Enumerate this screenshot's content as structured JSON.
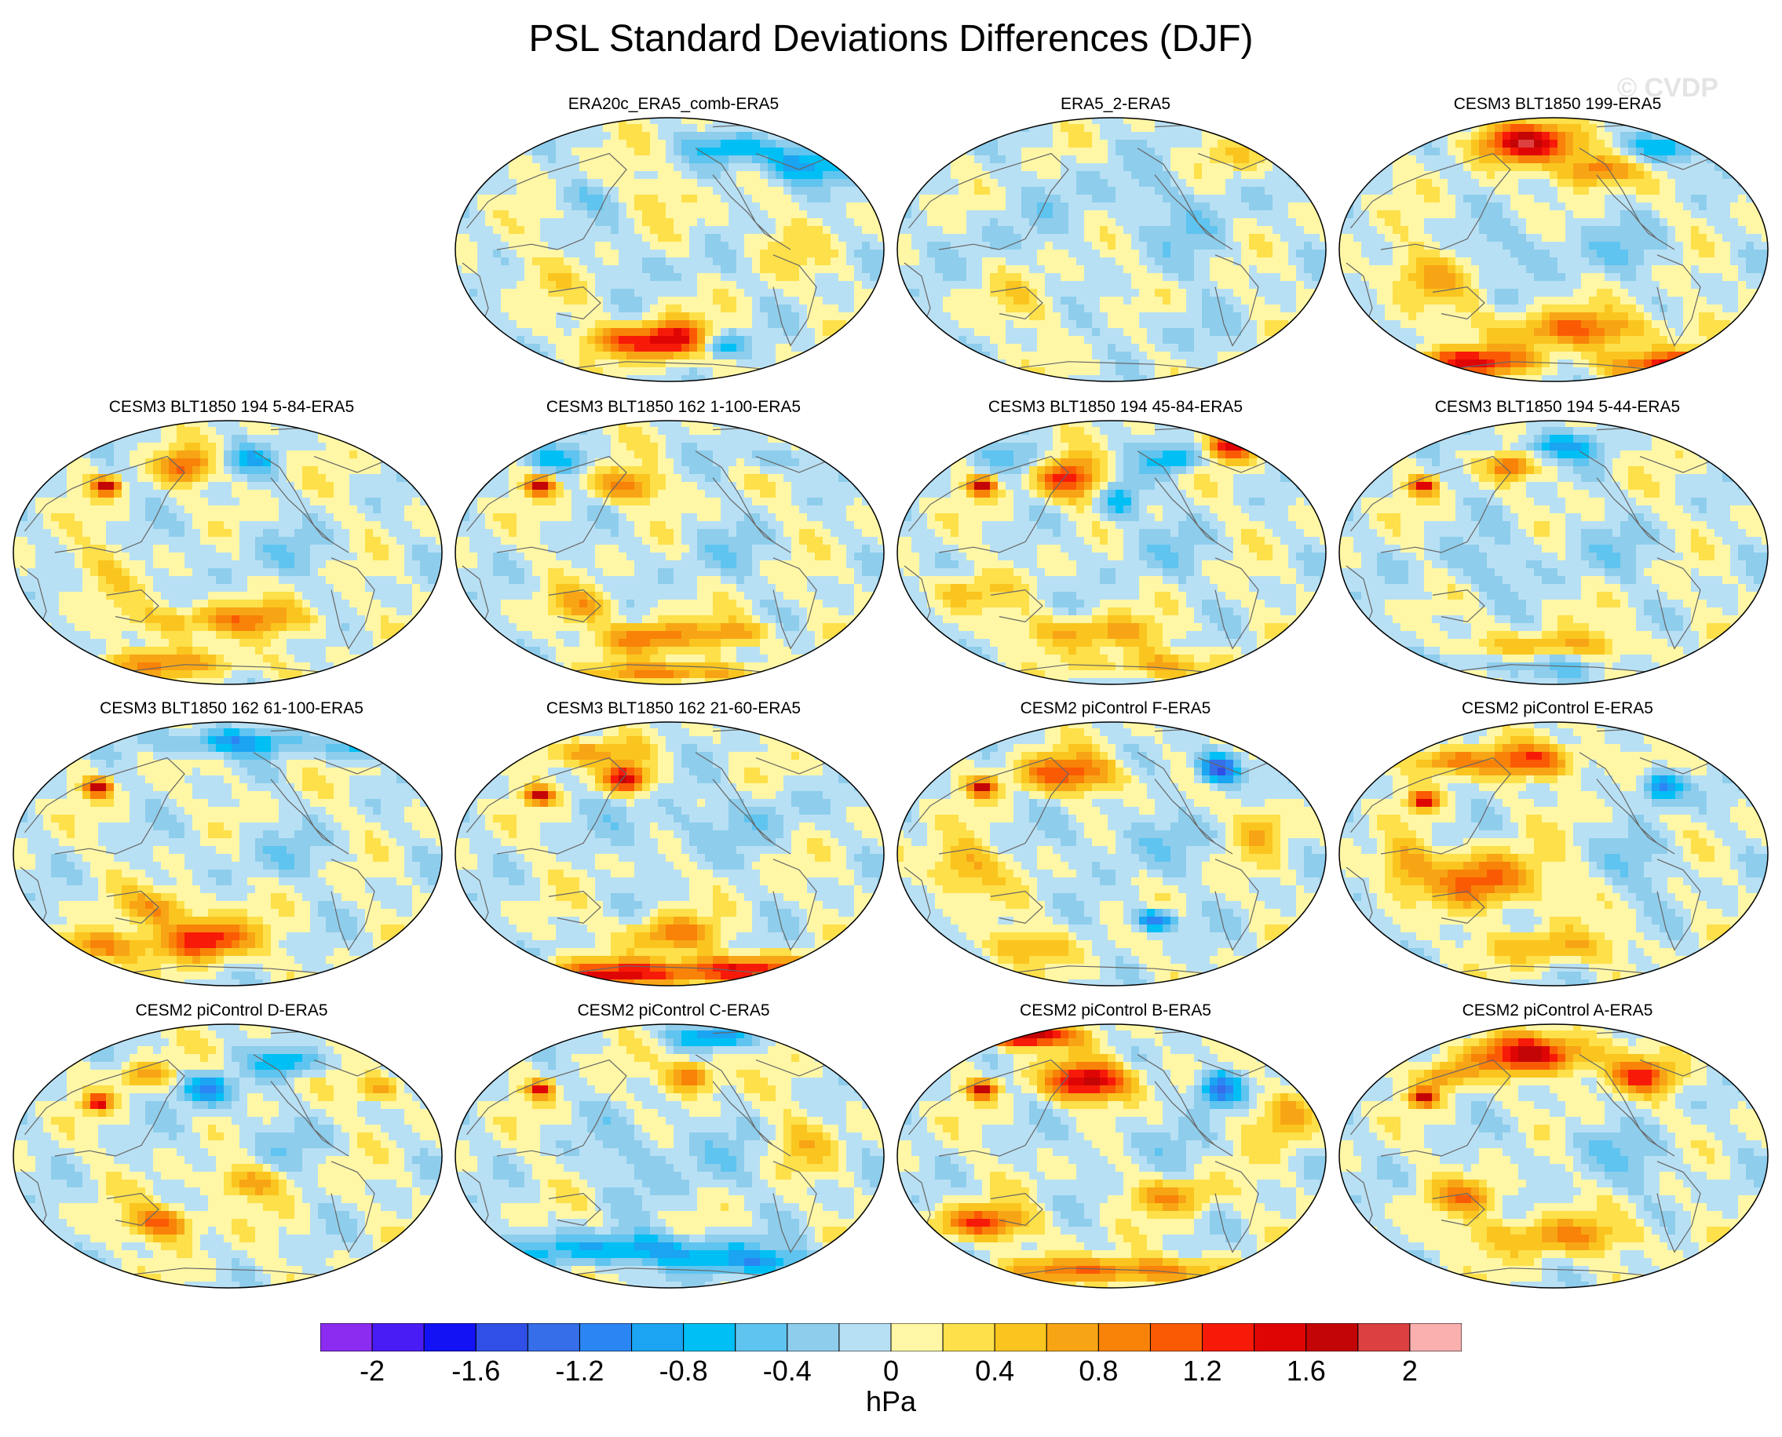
{
  "title": "PSL Standard Deviations Differences (DJF)",
  "watermark": "© CVDP",
  "panels": [
    {
      "title": "ERA20c_ERA5_comb-ERA5",
      "blobs": [
        [
          0.5,
          0.84,
          0.09,
          0.07,
          1.6
        ],
        [
          0.62,
          0.86,
          0.05,
          0.05,
          -0.9
        ],
        [
          0.37,
          0.84,
          0.08,
          0.05,
          0.8
        ],
        [
          0.8,
          0.18,
          0.1,
          0.07,
          -1.0
        ],
        [
          0.65,
          0.12,
          0.1,
          0.05,
          -0.7
        ],
        [
          0.3,
          0.3,
          0.12,
          0.06,
          -0.3
        ],
        [
          0.5,
          0.55,
          0.2,
          0.08,
          -0.15
        ],
        [
          0.75,
          0.5,
          0.08,
          0.1,
          0.3
        ],
        [
          0.2,
          0.6,
          0.1,
          0.1,
          0.2
        ],
        [
          0.45,
          0.3,
          0.1,
          0.06,
          0.3
        ]
      ]
    },
    {
      "title": "ERA5_2-ERA5",
      "blobs": [
        [
          0.45,
          0.3,
          0.15,
          0.15,
          -0.2
        ],
        [
          0.7,
          0.4,
          0.12,
          0.2,
          -0.25
        ],
        [
          0.3,
          0.7,
          0.12,
          0.1,
          0.2
        ],
        [
          0.6,
          0.8,
          0.15,
          0.08,
          -0.2
        ],
        [
          0.8,
          0.15,
          0.1,
          0.06,
          0.3
        ],
        [
          0.2,
          0.45,
          0.1,
          0.12,
          -0.2
        ]
      ]
    },
    {
      "title": "CESM3 BLT1850 199-ERA5",
      "blobs": [
        [
          0.45,
          0.1,
          0.12,
          0.07,
          1.6
        ],
        [
          0.6,
          0.2,
          0.08,
          0.06,
          1.1
        ],
        [
          0.75,
          0.12,
          0.1,
          0.06,
          -0.9
        ],
        [
          0.3,
          0.92,
          0.15,
          0.05,
          1.4
        ],
        [
          0.8,
          0.93,
          0.15,
          0.05,
          1.5
        ],
        [
          0.55,
          0.8,
          0.2,
          0.07,
          0.9
        ],
        [
          0.2,
          0.6,
          0.1,
          0.1,
          0.6
        ],
        [
          0.45,
          0.5,
          0.15,
          0.1,
          -0.3
        ],
        [
          0.7,
          0.5,
          0.1,
          0.12,
          -0.25
        ]
      ]
    },
    {
      "title": "CESM3 BLT1850 194 5-84-ERA5",
      "blobs": [
        [
          0.4,
          0.18,
          0.06,
          0.06,
          1.0
        ],
        [
          0.22,
          0.25,
          0.03,
          0.03,
          1.6
        ],
        [
          0.55,
          0.15,
          0.06,
          0.05,
          -0.6
        ],
        [
          0.5,
          0.75,
          0.2,
          0.06,
          0.8
        ],
        [
          0.35,
          0.92,
          0.2,
          0.05,
          0.7
        ],
        [
          0.6,
          0.5,
          0.2,
          0.1,
          -0.2
        ],
        [
          0.2,
          0.55,
          0.08,
          0.1,
          0.3
        ]
      ]
    },
    {
      "title": "CESM3 BLT1850 162 1-100-ERA5",
      "blobs": [
        [
          0.4,
          0.25,
          0.08,
          0.06,
          0.9
        ],
        [
          0.2,
          0.25,
          0.03,
          0.03,
          1.6
        ],
        [
          0.25,
          0.15,
          0.08,
          0.05,
          -0.6
        ],
        [
          0.75,
          0.15,
          0.08,
          0.05,
          -0.5
        ],
        [
          0.45,
          0.82,
          0.1,
          0.06,
          1.0
        ],
        [
          0.65,
          0.8,
          0.08,
          0.05,
          0.8
        ],
        [
          0.3,
          0.7,
          0.08,
          0.06,
          0.6
        ],
        [
          0.5,
          0.95,
          0.15,
          0.04,
          1.0
        ],
        [
          0.6,
          0.5,
          0.15,
          0.12,
          -0.2
        ]
      ]
    },
    {
      "title": "CESM3 BLT1850 194 45-84-ERA5",
      "blobs": [
        [
          0.4,
          0.22,
          0.08,
          0.08,
          1.3
        ],
        [
          0.52,
          0.3,
          0.05,
          0.08,
          -0.8
        ],
        [
          0.78,
          0.1,
          0.06,
          0.05,
          1.4
        ],
        [
          0.65,
          0.15,
          0.06,
          0.05,
          -0.9
        ],
        [
          0.2,
          0.25,
          0.03,
          0.03,
          1.6
        ],
        [
          0.3,
          0.15,
          0.1,
          0.06,
          -0.5
        ],
        [
          0.45,
          0.8,
          0.15,
          0.06,
          0.7
        ],
        [
          0.6,
          0.92,
          0.15,
          0.05,
          0.6
        ],
        [
          0.6,
          0.5,
          0.15,
          0.12,
          -0.2
        ],
        [
          0.15,
          0.65,
          0.08,
          0.06,
          0.6
        ]
      ]
    },
    {
      "title": "CESM3 BLT1850 194 5-44-ERA5",
      "blobs": [
        [
          0.4,
          0.18,
          0.05,
          0.05,
          1.0
        ],
        [
          0.2,
          0.25,
          0.03,
          0.03,
          1.4
        ],
        [
          0.5,
          0.1,
          0.1,
          0.05,
          -0.8
        ],
        [
          0.5,
          0.85,
          0.2,
          0.05,
          0.6
        ],
        [
          0.4,
          0.92,
          0.25,
          0.05,
          -0.4
        ],
        [
          0.6,
          0.5,
          0.2,
          0.12,
          -0.2
        ],
        [
          0.3,
          0.55,
          0.1,
          0.1,
          -0.3
        ]
      ]
    },
    {
      "title": "CESM3 BLT1850 162 61-100-ERA5",
      "blobs": [
        [
          0.45,
          0.82,
          0.1,
          0.07,
          1.5
        ],
        [
          0.2,
          0.85,
          0.1,
          0.06,
          1.0
        ],
        [
          0.35,
          0.7,
          0.08,
          0.06,
          0.8
        ],
        [
          0.5,
          0.08,
          0.15,
          0.05,
          -0.9
        ],
        [
          0.8,
          0.1,
          0.08,
          0.05,
          -0.8
        ],
        [
          0.2,
          0.25,
          0.03,
          0.03,
          1.6
        ],
        [
          0.6,
          0.5,
          0.2,
          0.1,
          -0.2
        ]
      ]
    },
    {
      "title": "CESM3 BLT1850 162 21-60-ERA5",
      "blobs": [
        [
          0.4,
          0.22,
          0.05,
          0.05,
          1.6
        ],
        [
          0.3,
          0.12,
          0.12,
          0.05,
          0.7
        ],
        [
          0.2,
          0.28,
          0.03,
          0.03,
          1.6
        ],
        [
          0.4,
          0.95,
          0.2,
          0.05,
          1.4
        ],
        [
          0.7,
          0.93,
          0.15,
          0.05,
          1.2
        ],
        [
          0.5,
          0.8,
          0.1,
          0.06,
          0.9
        ],
        [
          0.5,
          0.4,
          0.15,
          0.12,
          -0.3
        ],
        [
          0.75,
          0.35,
          0.08,
          0.1,
          -0.3
        ]
      ]
    },
    {
      "title": "CESM2 piControl F-ERA5",
      "blobs": [
        [
          0.4,
          0.2,
          0.12,
          0.07,
          1.1
        ],
        [
          0.75,
          0.18,
          0.05,
          0.06,
          -1.6
        ],
        [
          0.2,
          0.25,
          0.03,
          0.03,
          1.6
        ],
        [
          0.6,
          0.75,
          0.05,
          0.04,
          -1.3
        ],
        [
          0.15,
          0.55,
          0.08,
          0.1,
          0.7
        ],
        [
          0.3,
          0.85,
          0.1,
          0.06,
          0.6
        ],
        [
          0.55,
          0.45,
          0.15,
          0.12,
          -0.3
        ],
        [
          0.85,
          0.4,
          0.06,
          0.1,
          0.5
        ]
      ]
    },
    {
      "title": "CESM2 piControl E-ERA5",
      "blobs": [
        [
          0.45,
          0.15,
          0.12,
          0.06,
          1.1
        ],
        [
          0.25,
          0.15,
          0.08,
          0.05,
          0.9
        ],
        [
          0.75,
          0.25,
          0.05,
          0.06,
          -1.2
        ],
        [
          0.35,
          0.6,
          0.12,
          0.1,
          1.1
        ],
        [
          0.2,
          0.3,
          0.03,
          0.03,
          1.6
        ],
        [
          0.5,
          0.85,
          0.15,
          0.06,
          0.6
        ],
        [
          0.7,
          0.55,
          0.1,
          0.12,
          -0.3
        ],
        [
          0.15,
          0.55,
          0.06,
          0.1,
          0.8
        ]
      ]
    },
    {
      "title": "CESM2 piControl D-ERA5",
      "blobs": [
        [
          0.45,
          0.25,
          0.06,
          0.06,
          -1.0
        ],
        [
          0.3,
          0.2,
          0.06,
          0.05,
          0.7
        ],
        [
          0.65,
          0.15,
          0.08,
          0.05,
          -0.8
        ],
        [
          0.2,
          0.3,
          0.03,
          0.03,
          1.4
        ],
        [
          0.35,
          0.75,
          0.08,
          0.06,
          1.1
        ],
        [
          0.55,
          0.6,
          0.08,
          0.06,
          0.7
        ],
        [
          0.6,
          0.45,
          0.15,
          0.1,
          -0.2
        ],
        [
          0.85,
          0.25,
          0.05,
          0.05,
          0.8
        ]
      ]
    },
    {
      "title": "CESM2 piControl C-ERA5",
      "blobs": [
        [
          0.55,
          0.2,
          0.06,
          0.06,
          1.1
        ],
        [
          0.6,
          0.05,
          0.1,
          0.04,
          -1.0
        ],
        [
          0.4,
          0.85,
          0.25,
          0.06,
          -0.9
        ],
        [
          0.7,
          0.9,
          0.15,
          0.05,
          -0.8
        ],
        [
          0.2,
          0.25,
          0.03,
          0.03,
          1.3
        ],
        [
          0.5,
          0.5,
          0.2,
          0.15,
          -0.3
        ],
        [
          0.8,
          0.45,
          0.08,
          0.1,
          0.4
        ]
      ]
    },
    {
      "title": "CESM2 piControl B-ERA5",
      "blobs": [
        [
          0.3,
          0.05,
          0.1,
          0.04,
          2.0
        ],
        [
          0.45,
          0.22,
          0.1,
          0.07,
          1.7
        ],
        [
          0.75,
          0.25,
          0.05,
          0.07,
          -1.4
        ],
        [
          0.5,
          0.93,
          0.25,
          0.05,
          1.0
        ],
        [
          0.2,
          0.75,
          0.1,
          0.06,
          1.2
        ],
        [
          0.65,
          0.65,
          0.1,
          0.06,
          0.7
        ],
        [
          0.2,
          0.25,
          0.03,
          0.03,
          1.6
        ],
        [
          0.55,
          0.45,
          0.15,
          0.1,
          -0.2
        ],
        [
          0.9,
          0.35,
          0.06,
          0.1,
          0.8
        ]
      ]
    },
    {
      "title": "CESM2 piControl A-ERA5",
      "blobs": [
        [
          0.45,
          0.12,
          0.15,
          0.07,
          1.5
        ],
        [
          0.7,
          0.2,
          0.08,
          0.06,
          1.1
        ],
        [
          0.25,
          0.2,
          0.06,
          0.05,
          0.8
        ],
        [
          0.2,
          0.28,
          0.03,
          0.03,
          1.6
        ],
        [
          0.5,
          0.8,
          0.2,
          0.07,
          0.7
        ],
        [
          0.3,
          0.65,
          0.08,
          0.06,
          0.8
        ],
        [
          0.7,
          0.55,
          0.15,
          0.1,
          -0.2
        ],
        [
          0.6,
          0.45,
          0.15,
          0.08,
          -0.2
        ]
      ]
    }
  ],
  "colorbar": {
    "units": "hPa",
    "levels": [
      -2.2,
      -2,
      -1.8,
      -1.6,
      -1.4,
      -1.2,
      -1,
      -0.8,
      -0.6,
      -0.4,
      -0.2,
      0,
      0.2,
      0.4,
      0.6,
      0.8,
      1,
      1.2,
      1.4,
      1.6,
      1.8,
      2,
      2.2
    ],
    "labels": [
      "-2",
      "-1.6",
      "-1.2",
      "-0.8",
      "-0.4",
      "0",
      "0.4",
      "0.8",
      "1.2",
      "1.6",
      "2"
    ],
    "label_values": [
      -2,
      -1.6,
      -1.2,
      -0.8,
      -0.4,
      0,
      0.4,
      0.8,
      1.2,
      1.6,
      2
    ],
    "colors": [
      "#8b2cf0",
      "#4a1cf5",
      "#1212f5",
      "#2f4fe6",
      "#356ee8",
      "#2b86f4",
      "#1aa4f2",
      "#00bff5",
      "#5fc4ef",
      "#8ecdec",
      "#b8e0f4",
      "#fff7a6",
      "#fde04a",
      "#fbc51f",
      "#f8a515",
      "#f88308",
      "#fb5a04",
      "#f81a08",
      "#e00505",
      "#c40505",
      "#dd4040",
      "#fbb0b0"
    ]
  }
}
